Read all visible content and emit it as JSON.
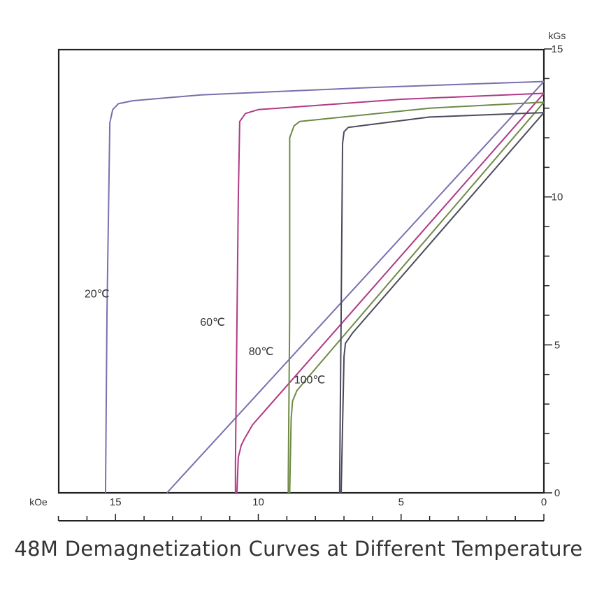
{
  "chart_data": {
    "type": "line",
    "title": "48M Demagnetization Curves at Different Temperature",
    "x_unit": "kOe",
    "y_unit": "kGs",
    "x_axis_reversed": true,
    "xlim": [
      0,
      17
    ],
    "ylim": [
      0,
      15
    ],
    "x_ticks": [
      15,
      10,
      5,
      0
    ],
    "y_ticks": [
      0,
      5,
      10,
      15
    ],
    "grid": false,
    "series": [
      {
        "name": "20℃",
        "color": "#7a6fae",
        "bh_curve": [
          [
            0,
            13.9
          ],
          [
            6,
            13.7
          ],
          [
            12,
            13.45
          ],
          [
            14.4,
            13.25
          ],
          [
            14.9,
            13.15
          ],
          [
            15.1,
            12.95
          ],
          [
            15.2,
            12.5
          ],
          [
            15.3,
            6
          ],
          [
            15.35,
            0.2
          ],
          [
            15.35,
            0
          ]
        ],
        "recoil_line": [
          [
            0,
            13.9
          ],
          [
            13.2,
            0
          ]
        ]
      },
      {
        "name": "60℃",
        "color": "#b03a85",
        "bh_curve": [
          [
            0,
            13.5
          ],
          [
            5,
            13.3
          ],
          [
            10,
            12.95
          ],
          [
            10.45,
            12.82
          ],
          [
            10.65,
            12.55
          ],
          [
            10.7,
            10
          ],
          [
            10.8,
            1
          ],
          [
            10.8,
            0
          ]
        ],
        "recoil_line": [
          [
            0,
            13.5
          ],
          [
            10.2,
            2.3
          ],
          [
            10.5,
            1.8
          ],
          [
            10.6,
            1.6
          ],
          [
            10.7,
            1.2
          ],
          [
            10.75,
            0
          ]
        ]
      },
      {
        "name": "80℃",
        "color": "#6f8a45",
        "bh_curve": [
          [
            0,
            13.2
          ],
          [
            4,
            13.0
          ],
          [
            8.55,
            12.55
          ],
          [
            8.75,
            12.4
          ],
          [
            8.9,
            12.0
          ],
          [
            8.9,
            6
          ],
          [
            8.95,
            0.5
          ],
          [
            8.95,
            0
          ]
        ],
        "recoil_line": [
          [
            0,
            13.2
          ],
          [
            8.35,
            3.8
          ],
          [
            8.65,
            3.45
          ],
          [
            8.8,
            3.1
          ],
          [
            8.85,
            2.5
          ],
          [
            8.9,
            0
          ]
        ]
      },
      {
        "name": "100℃",
        "color": "#4a4a5c",
        "bh_curve": [
          [
            0,
            12.85
          ],
          [
            4,
            12.7
          ],
          [
            6.85,
            12.35
          ],
          [
            7.0,
            12.2
          ],
          [
            7.05,
            11.8
          ],
          [
            7.1,
            6
          ],
          [
            7.15,
            0.5
          ],
          [
            7.15,
            0
          ]
        ],
        "recoil_line": [
          [
            0,
            12.85
          ],
          [
            6.7,
            5.4
          ],
          [
            6.95,
            5.05
          ],
          [
            7.0,
            4.6
          ],
          [
            7.1,
            0
          ]
        ]
      }
    ],
    "annotations": [
      {
        "text": "20℃",
        "x": 15.65,
        "y": 6.6
      },
      {
        "text": "60℃",
        "x": 11.6,
        "y": 5.65
      },
      {
        "text": "80℃",
        "x": 9.9,
        "y": 4.65
      },
      {
        "text": "100℃",
        "x": 8.2,
        "y": 3.7
      }
    ]
  }
}
